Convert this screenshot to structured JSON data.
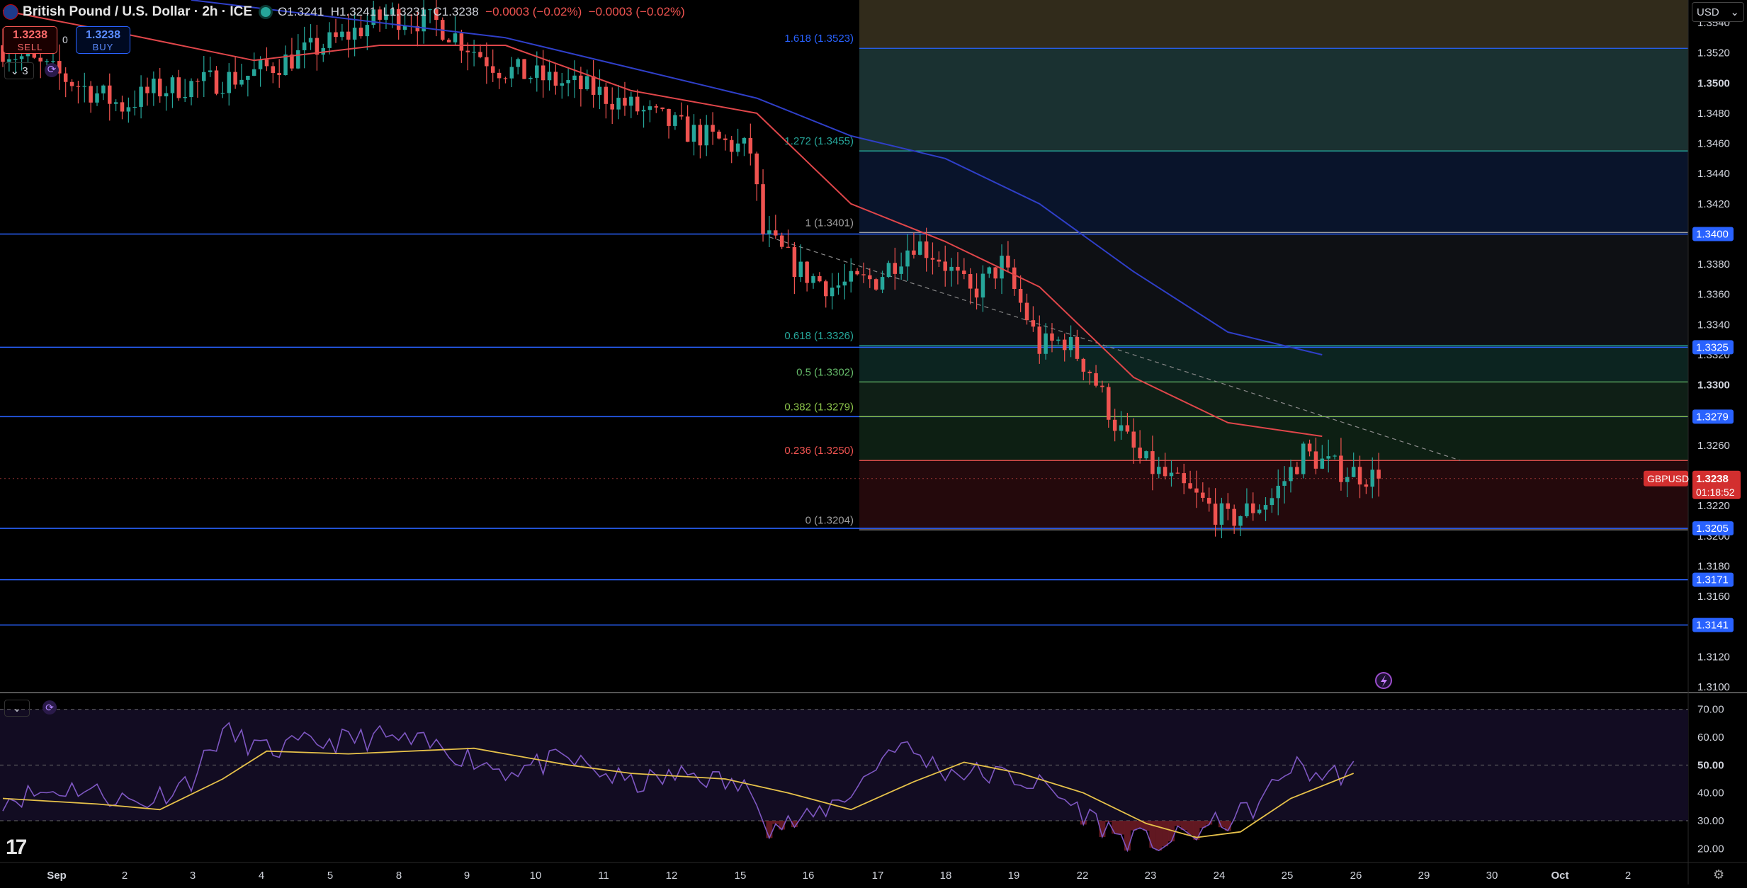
{
  "header": {
    "title": "British Pound / U.S. Dollar · 2h · ICE",
    "open": "O1.3241",
    "high": "H1.3241",
    "low": "L1.3231",
    "close": "C1.3238",
    "change": "−0.0003 (−0.02%)",
    "change2": "−0.0003 (−0.02%)"
  },
  "trade": {
    "sell_price": "1.3238",
    "sell_label": "SELL",
    "buy_price": "1.3238",
    "buy_label": "BUY",
    "spread": "0"
  },
  "indicators": {
    "count": "3",
    "collapse": "⌄"
  },
  "currency": {
    "label": "USD",
    "arrow": "⌄"
  },
  "colors": {
    "up": "#26a69a",
    "down": "#ef5350",
    "ma_fast": "#e0464a",
    "ma_slow": "#2f3fc8",
    "rsi": "#7e57c2",
    "rsi_ma": "#e6c14a",
    "level": "#2962ff"
  },
  "chart_data": {
    "type": "candlestick",
    "symbol": "GBPUSD",
    "timeframe": "2h",
    "y_axis": {
      "min": 1.31,
      "max": 1.355,
      "ticks": [
        "1.3540",
        "1.3520",
        "1.3500",
        "1.3480",
        "1.3460",
        "1.3440",
        "1.3420",
        "1.3400",
        "1.3380",
        "1.3360",
        "1.3340",
        "1.3320",
        "1.3300",
        "1.3280",
        "1.3260",
        "1.3240",
        "1.3220",
        "1.3200",
        "1.3180",
        "1.3160",
        "1.3140",
        "1.3120",
        "1.3100"
      ]
    },
    "x_axis": {
      "labels": [
        "Sep",
        "2",
        "3",
        "4",
        "5",
        "8",
        "9",
        "10",
        "11",
        "12",
        "15",
        "16",
        "17",
        "18",
        "19",
        "22",
        "23",
        "24",
        "25",
        "26",
        "29",
        "30",
        "Oct",
        "2"
      ]
    },
    "price": {
      "start": 1.3525,
      "end": 1.3238,
      "anchors": [
        [
          0,
          1.3525
        ],
        [
          20,
          1.3485
        ],
        [
          25,
          1.3495
        ],
        [
          40,
          1.3505
        ],
        [
          55,
          1.353
        ],
        [
          62,
          1.3545
        ],
        [
          70,
          1.354
        ],
        [
          80,
          1.351
        ],
        [
          95,
          1.3495
        ],
        [
          110,
          1.3468
        ],
        [
          120,
          1.3455
        ],
        [
          122,
          1.34
        ],
        [
          128,
          1.3375
        ],
        [
          133,
          1.3365
        ],
        [
          140,
          1.337
        ],
        [
          146,
          1.3395
        ],
        [
          150,
          1.3385
        ],
        [
          155,
          1.336
        ],
        [
          160,
          1.338
        ],
        [
          164,
          1.3345
        ],
        [
          166,
          1.3325
        ],
        [
          170,
          1.333
        ],
        [
          174,
          1.331
        ],
        [
          178,
          1.3275
        ],
        [
          182,
          1.325
        ],
        [
          190,
          1.3228
        ],
        [
          196,
          1.321
        ],
        [
          203,
          1.3225
        ],
        [
          208,
          1.3255
        ],
        [
          213,
          1.3245
        ],
        [
          220,
          1.3238
        ]
      ]
    },
    "ma_fast": [
      [
        0,
        1.3548
      ],
      [
        20,
        1.3532
      ],
      [
        40,
        1.3515
      ],
      [
        60,
        1.3525
      ],
      [
        80,
        1.3525
      ],
      [
        100,
        1.3495
      ],
      [
        120,
        1.348
      ],
      [
        135,
        1.342
      ],
      [
        150,
        1.3395
      ],
      [
        165,
        1.3365
      ],
      [
        180,
        1.3305
      ],
      [
        195,
        1.3275
      ],
      [
        210,
        1.3266
      ]
    ],
    "ma_slow": [
      [
        30,
        1.3555
      ],
      [
        60,
        1.354
      ],
      [
        80,
        1.353
      ],
      [
        100,
        1.351
      ],
      [
        120,
        1.349
      ],
      [
        135,
        1.3465
      ],
      [
        150,
        1.345
      ],
      [
        165,
        1.342
      ],
      [
        180,
        1.3375
      ],
      [
        195,
        1.3335
      ],
      [
        210,
        1.332
      ]
    ],
    "trendline": {
      "from": [
        122,
        1.3398
      ],
      "to": [
        232,
        1.325
      ]
    },
    "fibonacci": [
      {
        "label": "1.618 (1.3523)",
        "value": 1.3523,
        "color": "#2962ff"
      },
      {
        "label": "1.272 (1.3455)",
        "value": 1.3455,
        "color": "#26a69a"
      },
      {
        "label": "1 (1.3401)",
        "value": 1.3401,
        "color": "#9e9e9e"
      },
      {
        "label": "0.618 (1.3326)",
        "value": 1.3326,
        "color": "#26a69a"
      },
      {
        "label": "0.5 (1.3302)",
        "value": 1.3302,
        "color": "#66bb6a"
      },
      {
        "label": "0.382 (1.3279)",
        "value": 1.3279,
        "color": "#8bc34a"
      },
      {
        "label": "0.236 (1.3250)",
        "value": 1.325,
        "color": "#ef5350"
      },
      {
        "label": "0 (1.3204)",
        "value": 1.3204,
        "color": "#9e9e9e"
      }
    ],
    "levels": [
      {
        "label": "1.3400",
        "value": 1.34
      },
      {
        "label": "1.3325",
        "value": 1.3325
      },
      {
        "label": "1.3279",
        "value": 1.3279
      },
      {
        "label": "1.3205",
        "value": 1.3205
      },
      {
        "label": "1.3171",
        "value": 1.3171
      },
      {
        "label": "1.3141",
        "value": 1.3141
      }
    ],
    "last_price": {
      "tag": "GBPUSD",
      "label": "1.3238",
      "countdown": "01:18:52",
      "value": 1.3238
    },
    "rsi": {
      "y_axis": {
        "min": 15,
        "max": 75,
        "ticks": [
          "70.00",
          "60.00",
          "50.00",
          "40.00",
          "30.00",
          "20.00"
        ]
      },
      "bands": [
        70,
        50,
        30
      ],
      "anchors": [
        [
          0,
          38
        ],
        [
          12,
          42
        ],
        [
          22,
          36
        ],
        [
          30,
          45
        ],
        [
          35,
          62
        ],
        [
          42,
          55
        ],
        [
          50,
          58
        ],
        [
          60,
          60
        ],
        [
          70,
          56
        ],
        [
          80,
          48
        ],
        [
          90,
          52
        ],
        [
          100,
          43
        ],
        [
          110,
          47
        ],
        [
          120,
          40
        ],
        [
          122,
          28
        ],
        [
          128,
          30
        ],
        [
          136,
          42
        ],
        [
          142,
          58
        ],
        [
          150,
          48
        ],
        [
          160,
          46
        ],
        [
          166,
          42
        ],
        [
          172,
          33
        ],
        [
          178,
          24
        ],
        [
          185,
          22
        ],
        [
          190,
          26
        ],
        [
          196,
          31
        ],
        [
          200,
          36
        ],
        [
          205,
          50
        ],
        [
          210,
          46
        ],
        [
          215,
          48
        ]
      ],
      "ma_anchors": [
        [
          0,
          38
        ],
        [
          15,
          36
        ],
        [
          25,
          34
        ],
        [
          35,
          45
        ],
        [
          42,
          55
        ],
        [
          55,
          54
        ],
        [
          75,
          56
        ],
        [
          90,
          50
        ],
        [
          100,
          47
        ],
        [
          115,
          45
        ],
        [
          125,
          40
        ],
        [
          135,
          34
        ],
        [
          145,
          44
        ],
        [
          153,
          51
        ],
        [
          162,
          47
        ],
        [
          172,
          40
        ],
        [
          182,
          29
        ],
        [
          190,
          24
        ],
        [
          197,
          26
        ],
        [
          205,
          38
        ],
        [
          215,
          47
        ]
      ]
    }
  }
}
